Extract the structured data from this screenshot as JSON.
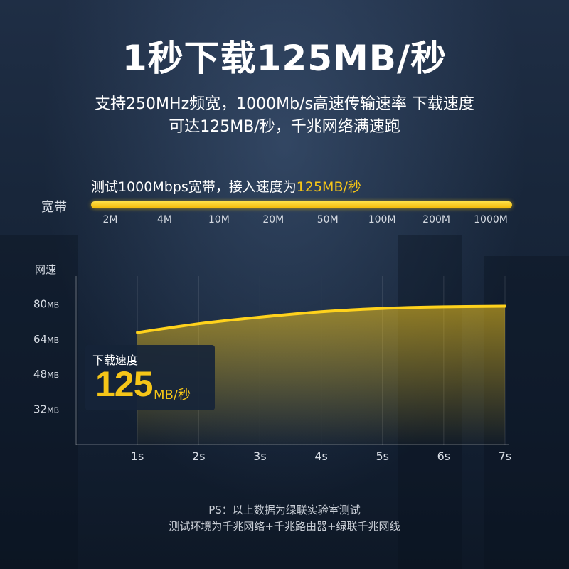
{
  "title": "1秒下载125MB/秒",
  "subtitle": {
    "line1": "支持250MHz频宽，1000Mb/s高速传输速率 下载速度",
    "line2": "可达125MB/秒，千兆网络满速跑"
  },
  "bandwidth": {
    "caption_prefix": "测试1000Mbps宽带，接入速度为",
    "caption_highlight": "125MB/秒",
    "label": "宽带",
    "ticks": [
      "2M",
      "4M",
      "10M",
      "20M",
      "50M",
      "100M",
      "200M",
      "1000M"
    ],
    "fill_fraction": 1.0
  },
  "speed_box": {
    "label": "下载速度",
    "value": "125",
    "unit": "MB/秒"
  },
  "footnote": {
    "line1": "PS：以上数据为绿联实验室测试",
    "line2": "测试环境为千兆网络+千兆路由器+绿联千兆网线"
  },
  "colors": {
    "accent": "#f5c518",
    "background": "#1a2a40"
  },
  "chart_data": {
    "type": "area",
    "title": "",
    "ylabel": "网速",
    "xlabel": "",
    "x": [
      1,
      2,
      3,
      4,
      5,
      6,
      7
    ],
    "x_tick_labels": [
      "1s",
      "2s",
      "3s",
      "4s",
      "5s",
      "6s",
      "7s"
    ],
    "values": [
      67,
      71,
      74,
      76.5,
      78,
      78.7,
      79
    ],
    "y_ticks": [
      {
        "value": 32,
        "num": "32",
        "unit": "MB"
      },
      {
        "value": 48,
        "num": "48",
        "unit": "MB"
      },
      {
        "value": 64,
        "num": "64",
        "unit": "MB"
      },
      {
        "value": 80,
        "num": "80",
        "unit": "MB"
      }
    ],
    "ylim": [
      16,
      96
    ],
    "xlim": [
      0,
      7
    ],
    "grid": true
  }
}
